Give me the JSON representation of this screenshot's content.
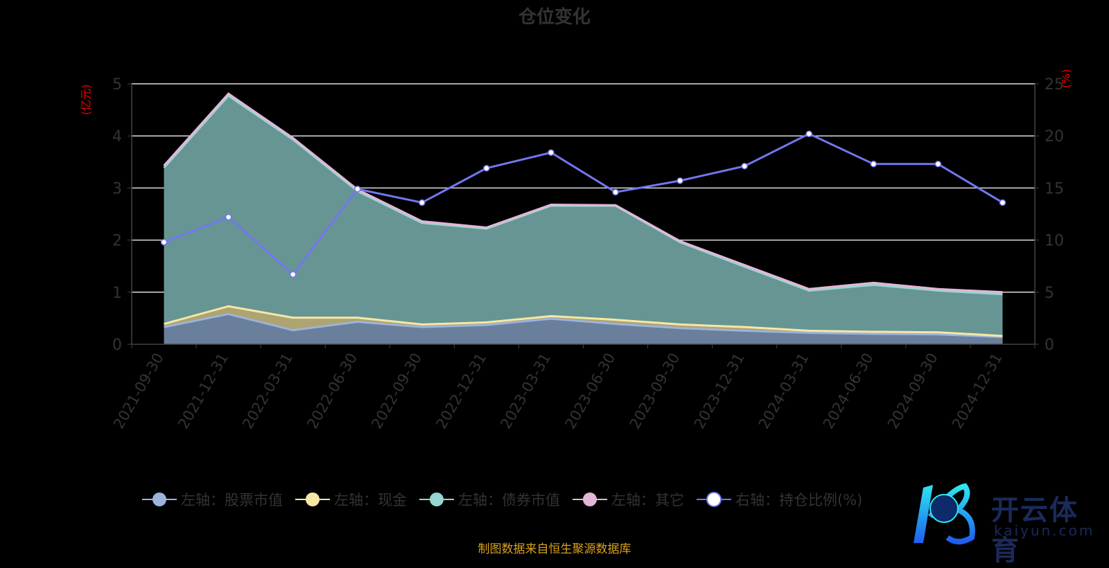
{
  "chart_data": {
    "type": "area",
    "title": "仓位变化",
    "left_unit": "(亿元)",
    "right_unit": "(%)",
    "categories": [
      "2021-09-30",
      "2021-12-31",
      "2022-03-31",
      "2022-06-30",
      "2022-09-30",
      "2022-12-31",
      "2023-03-31",
      "2023-06-30",
      "2023-09-30",
      "2023-12-31",
      "2024-03-31",
      "2024-06-30",
      "2024-09-30",
      "2024-12-31"
    ],
    "ylim_left": [
      0,
      5
    ],
    "yticks_left": [
      "0",
      "1",
      "2",
      "3",
      "4",
      "5"
    ],
    "ylim_right": [
      0,
      25
    ],
    "yticks_right": [
      "0",
      "5",
      "10",
      "15",
      "20",
      "25"
    ],
    "stacked_series": [
      {
        "name": "左轴：股票市值",
        "color": "#9bb3dd",
        "fill": "#6a7f9c",
        "values": [
          0.33,
          0.58,
          0.27,
          0.43,
          0.33,
          0.37,
          0.49,
          0.39,
          0.31,
          0.26,
          0.22,
          0.2,
          0.19,
          0.14
        ]
      },
      {
        "name": "左轴：现金",
        "color": "#f7e7a6",
        "fill": "#ada472",
        "values": [
          0.06,
          0.15,
          0.24,
          0.08,
          0.05,
          0.05,
          0.05,
          0.08,
          0.07,
          0.07,
          0.04,
          0.04,
          0.04,
          0.02
        ]
      },
      {
        "name": "左轴：债券市值",
        "color": "#97d6d2",
        "fill": "#679593",
        "values": [
          3.0,
          4.04,
          3.42,
          2.43,
          1.95,
          1.8,
          2.12,
          2.19,
          1.58,
          1.16,
          0.77,
          0.9,
          0.8,
          0.8
        ]
      },
      {
        "name": "左轴：其它",
        "color": "#e4b6d6",
        "fill": "#9c7e93",
        "values": [
          0.04,
          0.04,
          0.03,
          0.03,
          0.03,
          0.02,
          0.02,
          0.01,
          0.02,
          0.03,
          0.03,
          0.04,
          0.03,
          0.04
        ]
      }
    ],
    "line_series": {
      "name": "右轴：持仓比例(%)",
      "color": "#7277ef",
      "values": [
        9.8,
        12.2,
        6.7,
        14.9,
        13.6,
        16.9,
        18.4,
        14.6,
        15.7,
        17.1,
        20.2,
        17.3,
        17.3,
        13.6
      ]
    },
    "grid": true,
    "legend_position": "bottom"
  },
  "footer": "制图数据来自恒生聚源数据库",
  "watermark": {
    "cn": "开云体育",
    "en": "kaiyun.com"
  }
}
